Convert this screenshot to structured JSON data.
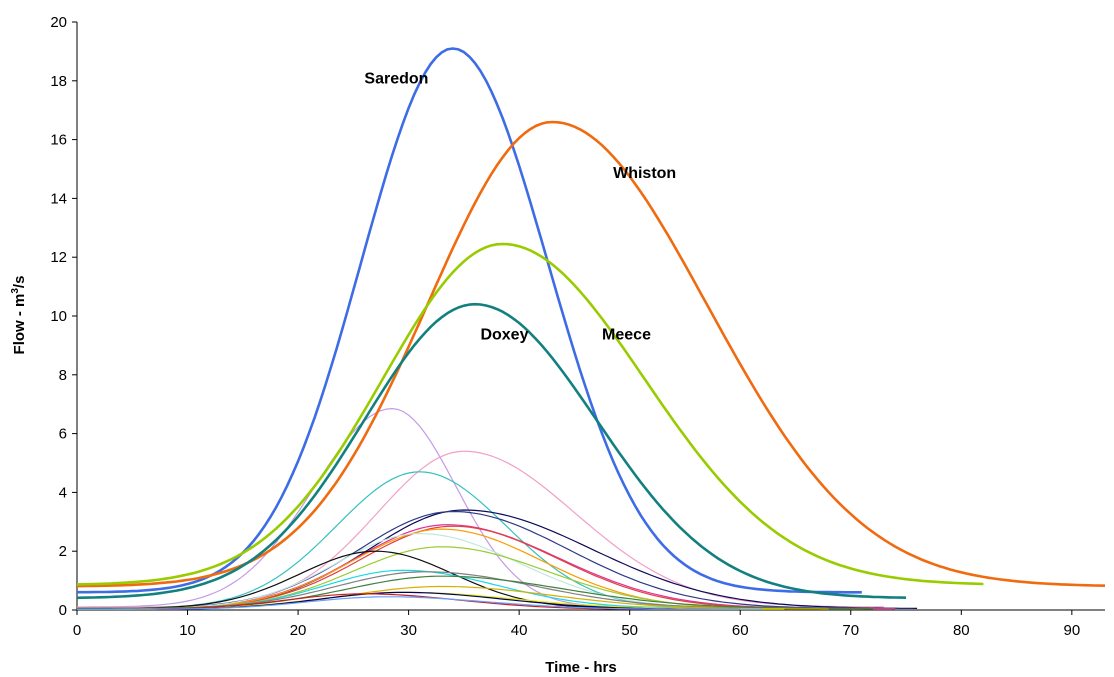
{
  "chart_data": {
    "type": "line",
    "xlabel": "Time - hrs",
    "ylabel_main": "Flow - m",
    "ylabel_sup": "3",
    "ylabel_tail": "/s",
    "xlim": [
      0,
      93
    ],
    "ylim": [
      0,
      20
    ],
    "x_ticks": [
      0,
      10,
      20,
      30,
      40,
      50,
      60,
      70,
      80,
      90
    ],
    "y_ticks": [
      0,
      2,
      4,
      6,
      8,
      10,
      12,
      14,
      16,
      18,
      20
    ],
    "grid": false,
    "legend": "none",
    "series": [
      {
        "name": "Saredon",
        "color": "#3d6ce6",
        "width": 2.6,
        "base": 0.6,
        "peak": 19.1,
        "tpeak": 34,
        "sl": 8.3,
        "sr": 8.6,
        "end": 71,
        "label_x": 26,
        "label_y": 17.9
      },
      {
        "name": "Whiston",
        "color": "#f06a10",
        "width": 2.6,
        "base": 0.8,
        "peak": 16.6,
        "tpeak": 43,
        "sl": 11.3,
        "sr": 14.0,
        "end": 93,
        "label_x": 48.5,
        "label_y": 14.7
      },
      {
        "name": "Meece",
        "color": "#99cc00",
        "width": 2.6,
        "base": 0.85,
        "peak": 12.45,
        "tpeak": 38.5,
        "sl": 10.8,
        "sr": 12.8,
        "end": 82,
        "label_x": 47.5,
        "label_y": 9.2
      },
      {
        "name": "Doxey",
        "color": "#138080",
        "width": 2.6,
        "base": 0.4,
        "peak": 10.4,
        "tpeak": 36,
        "sl": 10.0,
        "sr": 11.0,
        "end": 75,
        "label_x": 36.5,
        "label_y": 9.2
      },
      {
        "color": "#c39be6",
        "width": 1.2,
        "base": 0.1,
        "peak": 6.85,
        "tpeak": 28.5,
        "sl": 7.0,
        "sr": 5.8,
        "end": 72
      },
      {
        "color": "#f0a0c8",
        "width": 1.2,
        "base": 0.1,
        "peak": 5.4,
        "tpeak": 35,
        "sl": 7.8,
        "sr": 10.0,
        "end": 73
      },
      {
        "color": "#33c0c0",
        "width": 1.2,
        "base": 0.05,
        "peak": 4.7,
        "tpeak": 31,
        "sl": 7.5,
        "sr": 7.8,
        "end": 72
      },
      {
        "color": "#0a0a5a",
        "width": 1.2,
        "base": 0.05,
        "peak": 3.4,
        "tpeak": 35,
        "sl": 8.5,
        "sr": 11.5,
        "end": 76
      },
      {
        "color": "#2e3a86",
        "width": 1.2,
        "base": 0.05,
        "peak": 3.35,
        "tpeak": 34,
        "sl": 8.5,
        "sr": 10.5,
        "end": 74
      },
      {
        "color": "#e03090",
        "width": 1.2,
        "base": 0.05,
        "peak": 2.9,
        "tpeak": 33.5,
        "sl": 8.2,
        "sr": 10.0,
        "end": 74
      },
      {
        "color": "#e04040",
        "width": 1.2,
        "base": 0.05,
        "peak": 2.85,
        "tpeak": 34,
        "sl": 8.2,
        "sr": 9.5,
        "end": 72
      },
      {
        "color": "#ff9900",
        "width": 1.2,
        "base": 0.05,
        "peak": 2.75,
        "tpeak": 33,
        "sl": 8.0,
        "sr": 9.0,
        "end": 72
      },
      {
        "color": "#c0e8e0",
        "width": 1.2,
        "base": 0.05,
        "peak": 2.6,
        "tpeak": 31,
        "sl": 7.5,
        "sr": 9.0,
        "end": 70
      },
      {
        "color": "#99cc33",
        "width": 1.2,
        "base": 0.05,
        "peak": 2.15,
        "tpeak": 33,
        "sl": 8.0,
        "sr": 9.5,
        "end": 70
      },
      {
        "color": "#111111",
        "width": 1.2,
        "base": 0.05,
        "peak": 2.0,
        "tpeak": 27,
        "sl": 6.8,
        "sr": 7.0,
        "end": 54
      },
      {
        "color": "#18d8e8",
        "width": 1.2,
        "base": 0.05,
        "peak": 1.35,
        "tpeak": 29.5,
        "sl": 7.0,
        "sr": 8.5,
        "end": 68
      },
      {
        "color": "#808080",
        "width": 1.2,
        "base": 0.05,
        "peak": 1.3,
        "tpeak": 31.5,
        "sl": 8.0,
        "sr": 10.0,
        "end": 70
      },
      {
        "color": "#408040",
        "width": 1.2,
        "base": 0.05,
        "peak": 1.15,
        "tpeak": 33,
        "sl": 8.5,
        "sr": 11.0,
        "end": 72
      },
      {
        "color": "#d4b000",
        "width": 1.2,
        "base": 0.03,
        "peak": 0.8,
        "tpeak": 33,
        "sl": 8.5,
        "sr": 10.0,
        "end": 68
      },
      {
        "color": "#e8e800",
        "width": 1.2,
        "base": 0.03,
        "peak": 0.6,
        "tpeak": 30,
        "sl": 8.0,
        "sr": 9.5,
        "end": 64
      },
      {
        "color": "#000066",
        "width": 1.2,
        "base": 0.02,
        "peak": 0.6,
        "tpeak": 29.5,
        "sl": 7.5,
        "sr": 9.0,
        "end": 60
      },
      {
        "color": "#c81e1e",
        "width": 1.2,
        "base": 0.02,
        "peak": 0.55,
        "tpeak": 26,
        "sl": 7.0,
        "sr": 8.5,
        "end": 58
      },
      {
        "color": "#66a0ff",
        "width": 1.2,
        "base": 0.02,
        "peak": 0.45,
        "tpeak": 28,
        "sl": 7.0,
        "sr": 9.0,
        "end": 62
      }
    ]
  }
}
